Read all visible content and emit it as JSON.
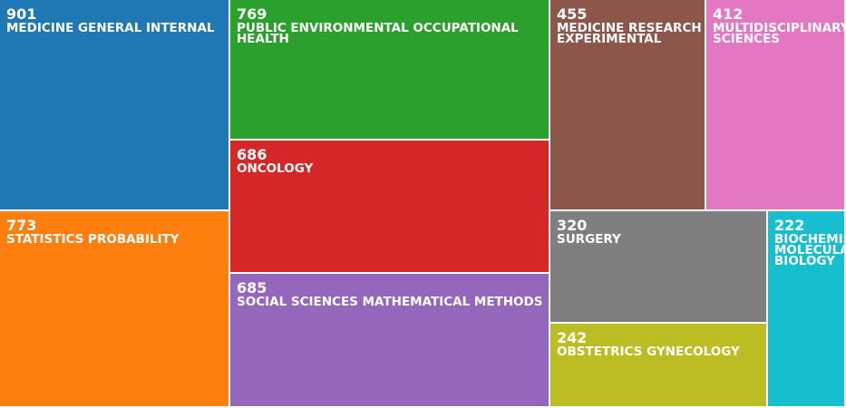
{
  "chart_data": {
    "type": "treemap",
    "title": "",
    "nodes": [
      {
        "name": "MEDICINE GENERAL INTERNAL",
        "value": 901,
        "color": "#1f77b4"
      },
      {
        "name": "STATISTICS PROBABILITY",
        "value": 773,
        "color": "#ff7f0e"
      },
      {
        "name": "PUBLIC ENVIRONMENTAL OCCUPATIONAL HEALTH",
        "value": 769,
        "color": "#2ca02c"
      },
      {
        "name": "ONCOLOGY",
        "value": 686,
        "color": "#d62728"
      },
      {
        "name": "SOCIAL SCIENCES MATHEMATICAL METHODS",
        "value": 685,
        "color": "#9467bd"
      },
      {
        "name": "MEDICINE RESEARCH EXPERIMENTAL",
        "value": 455,
        "color": "#8c564b"
      },
      {
        "name": "MULTIDISCIPLINARY SCIENCES",
        "value": 412,
        "color": "#e377c2"
      },
      {
        "name": "SURGERY",
        "value": 320,
        "color": "#7f7f7f"
      },
      {
        "name": "OBSTETRICS GYNECOLOGY",
        "value": 242,
        "color": "#bcbd22"
      },
      {
        "name": "BIOCHEMISTRY MOLECULAR BIOLOGY",
        "value": 222,
        "color": "#17becf"
      }
    ]
  }
}
